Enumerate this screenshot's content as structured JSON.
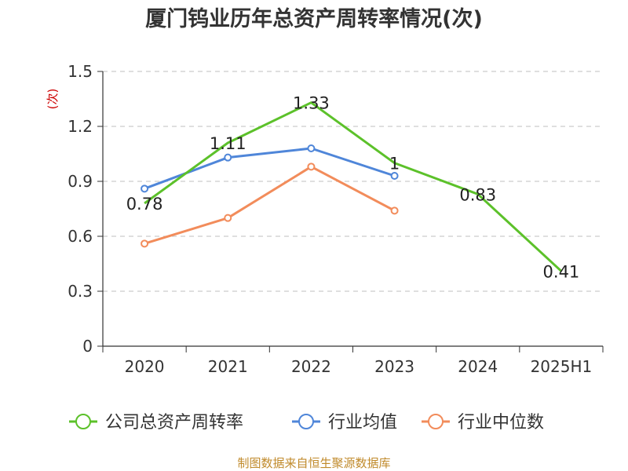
{
  "chart_data": {
    "type": "line",
    "title": "厦门钨业历年总资产周转率情况(次)",
    "ylabel": "(次)",
    "categories": [
      "2020",
      "2021",
      "2022",
      "2023",
      "2024",
      "2025H1"
    ],
    "ylim": [
      0,
      1.5
    ],
    "yticks": [
      "0",
      "0.3",
      "0.6",
      "0.9",
      "1.2",
      "1.5"
    ],
    "grid": true,
    "legend_position": "bottom",
    "series": [
      {
        "name": "公司总资产周转率",
        "color": "#5cc12a",
        "values": [
          0.78,
          1.11,
          1.33,
          1.0,
          0.83,
          0.41
        ],
        "labels": [
          "0.78",
          "1.11",
          "1.33",
          "1",
          "0.83",
          "0.41"
        ]
      },
      {
        "name": "行业均值",
        "color": "#4f86d9",
        "values": [
          0.86,
          1.03,
          1.08,
          0.93,
          null,
          null
        ]
      },
      {
        "name": "行业中位数",
        "color": "#f28c5b",
        "values": [
          0.56,
          0.7,
          0.98,
          0.74,
          null,
          null
        ]
      }
    ]
  },
  "source": "制图数据来自恒生聚源数据库"
}
